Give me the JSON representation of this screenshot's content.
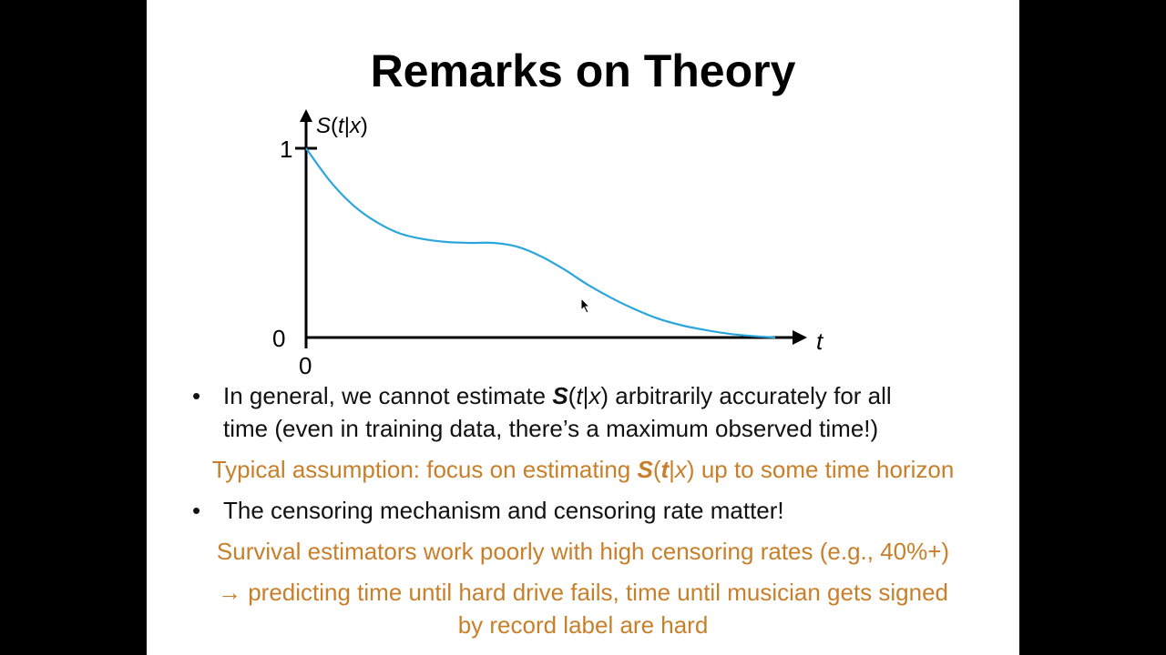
{
  "title": "Remarks on Theory",
  "chart_data": {
    "type": "line",
    "ylabel_S": "S",
    "ylabel_paren_open": "(",
    "ylabel_t": "t",
    "ylabel_bar": "|",
    "ylabel_x": "x",
    "ylabel_paren_close": ")",
    "xlabel": "t",
    "y_ticks": [
      "1",
      "0"
    ],
    "x_ticks": [
      "0"
    ],
    "ylim": [
      0,
      1
    ],
    "xlim": [
      0,
      10
    ],
    "series": [
      {
        "color": "#2aa6dc",
        "x": [
          0,
          0.5,
          1,
          1.5,
          2,
          2.5,
          3,
          3.5,
          4,
          4.5,
          5,
          5.5,
          6,
          6.5,
          7,
          7.5,
          8,
          8.5,
          9,
          9.5,
          10
        ],
        "y": [
          1.0,
          0.83,
          0.7,
          0.61,
          0.55,
          0.52,
          0.505,
          0.5,
          0.5,
          0.48,
          0.43,
          0.36,
          0.28,
          0.21,
          0.15,
          0.1,
          0.065,
          0.04,
          0.02,
          0.008,
          0.0
        ]
      }
    ]
  },
  "bullets": [
    {
      "prefix": "In general, we cannot estimate ",
      "S": "S",
      "po": "(",
      "t": "t",
      "bar": "|",
      "x": "x",
      "pc": ")",
      "suffix": " arbitrarily accurately for all",
      "line2": "time (even in training data, there’s a maximum observed time!)"
    },
    {
      "text": "The censoring mechanism and censoring rate matter!"
    }
  ],
  "orange_lines": {
    "assumption_prefix": "Typical assumption: focus on estimating ",
    "assumption_S": "S",
    "assumption_po": "(",
    "assumption_t": "t",
    "assumption_bar": "|",
    "assumption_x": "x",
    "assumption_pc": ")",
    "assumption_suffix": " up to some time horizon",
    "estimators": "Survival estimators work poorly with high censoring rates (e.g., 40%+)",
    "examples_line1": "→ predicting time until hard drive fails, time until musician gets signed",
    "examples_line2": "by record label are hard"
  },
  "bullet_char": "•"
}
